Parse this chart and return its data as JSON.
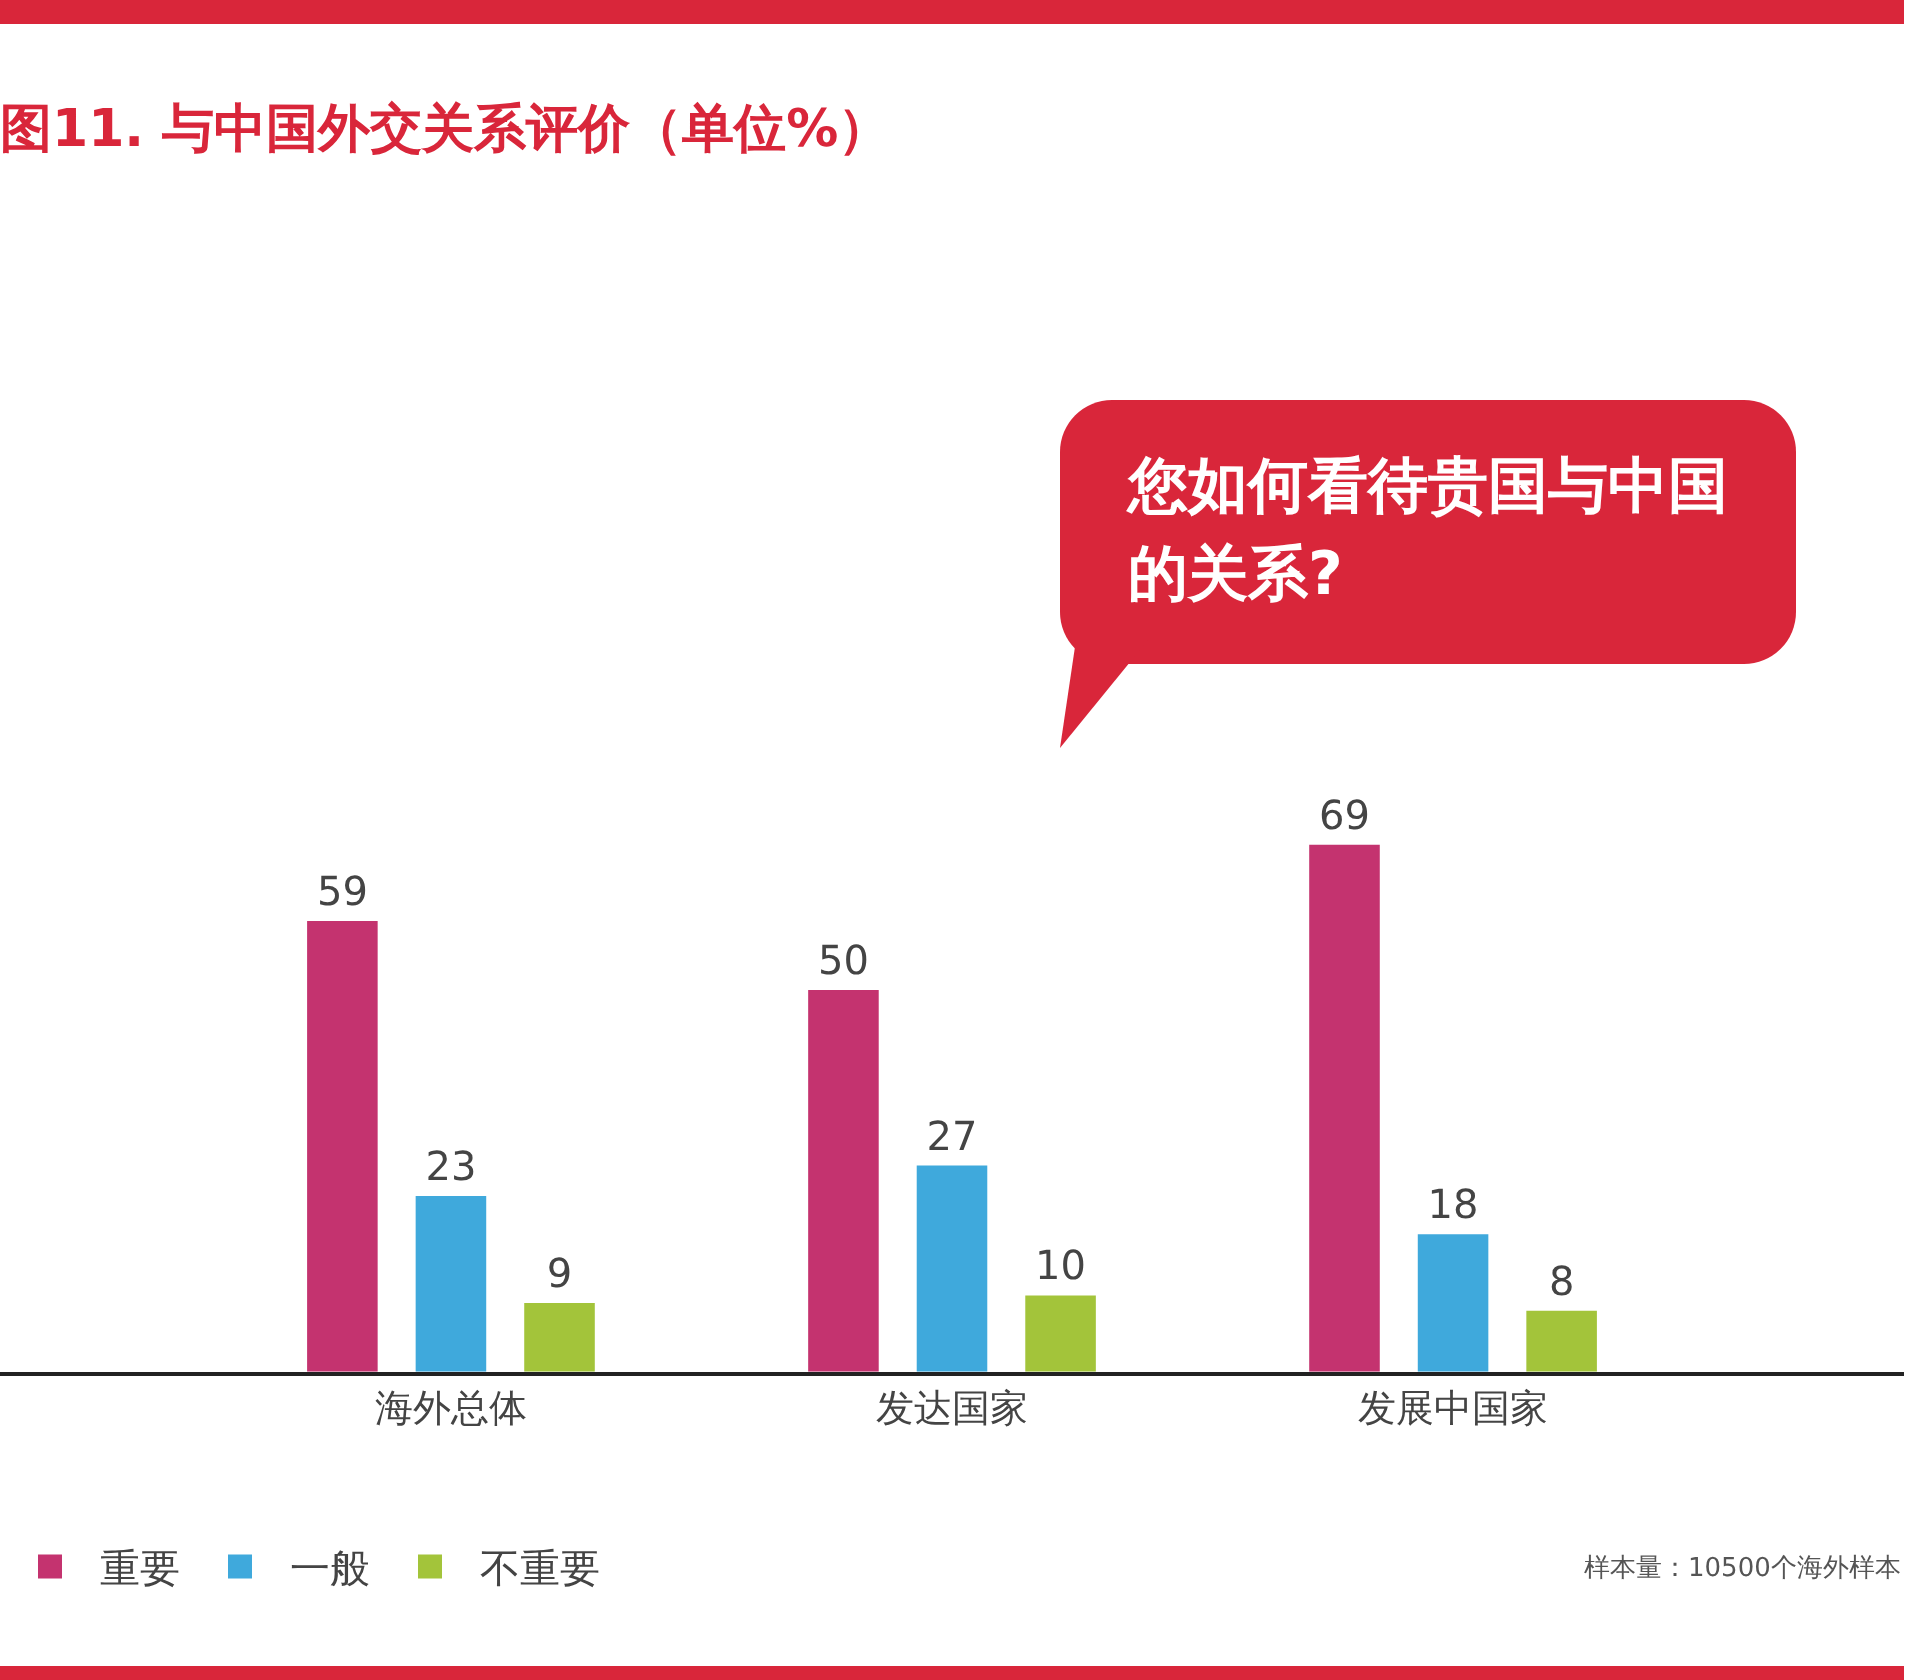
{
  "chart_data": {
    "type": "bar",
    "title": "图11. 与中国外交关系评价（单位%）",
    "categories": [
      "海外总体",
      "发达国家",
      "发展中国家"
    ],
    "series": [
      {
        "name": "重要",
        "color": "#c4336f",
        "values": [
          59,
          50,
          69
        ]
      },
      {
        "name": "一般",
        "color": "#3fa9dc",
        "values": [
          23,
          27,
          18
        ]
      },
      {
        "name": "不重要",
        "color": "#a3c43a",
        "values": [
          9,
          10,
          8
        ]
      }
    ],
    "data_labels": true,
    "legend": "bottom left",
    "annotations": [
      "您如何看待贵国与中国的关系?",
      "样本量：10500个海外样本"
    ]
  }
}
